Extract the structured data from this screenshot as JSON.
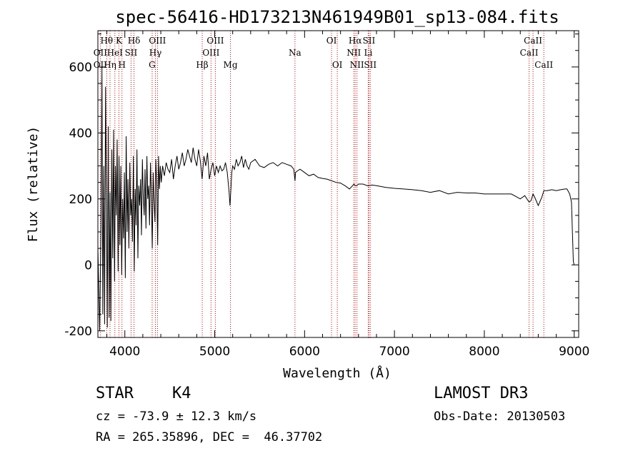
{
  "chart_data": {
    "type": "line",
    "title": "spec-56416-HD173213N461949B01_sp13-084.fits",
    "xlabel": "Wavelength (Å)",
    "ylabel": "Flux (relative)",
    "xlim": [
      3700,
      9050
    ],
    "ylim": [
      -220,
      710
    ],
    "x_ticks": [
      4000,
      5000,
      6000,
      7000,
      8000,
      9000
    ],
    "y_ticks": [
      -200,
      0,
      200,
      400,
      600
    ],
    "series": [
      {
        "name": "flux",
        "x": [
          3700,
          3720,
          3735,
          3745,
          3755,
          3765,
          3775,
          3785,
          3795,
          3805,
          3815,
          3825,
          3835,
          3845,
          3855,
          3865,
          3875,
          3885,
          3895,
          3905,
          3915,
          3925,
          3935,
          3945,
          3955,
          3965,
          3975,
          3985,
          3995,
          4005,
          4015,
          4025,
          4035,
          4045,
          4055,
          4065,
          4075,
          4085,
          4095,
          4105,
          4115,
          4125,
          4135,
          4145,
          4155,
          4165,
          4175,
          4185,
          4195,
          4205,
          4215,
          4225,
          4235,
          4245,
          4255,
          4265,
          4275,
          4285,
          4295,
          4305,
          4315,
          4325,
          4335,
          4345,
          4355,
          4365,
          4375,
          4385,
          4395,
          4405,
          4420,
          4440,
          4460,
          4480,
          4500,
          4520,
          4540,
          4560,
          4580,
          4600,
          4620,
          4640,
          4660,
          4680,
          4700,
          4720,
          4740,
          4760,
          4780,
          4800,
          4820,
          4840,
          4860,
          4880,
          4900,
          4920,
          4940,
          4960,
          4980,
          5000,
          5020,
          5040,
          5060,
          5080,
          5100,
          5120,
          5140,
          5160,
          5170,
          5180,
          5190,
          5200,
          5220,
          5240,
          5260,
          5280,
          5300,
          5320,
          5340,
          5360,
          5380,
          5400,
          5450,
          5500,
          5550,
          5600,
          5650,
          5700,
          5750,
          5800,
          5850,
          5880,
          5893,
          5900,
          5920,
          5950,
          6000,
          6050,
          6100,
          6150,
          6200,
          6250,
          6300,
          6350,
          6400,
          6450,
          6500,
          6550,
          6563,
          6580,
          6600,
          6650,
          6700,
          6750,
          6800,
          6900,
          7000,
          7100,
          7200,
          7300,
          7400,
          7500,
          7600,
          7700,
          7800,
          7900,
          8000,
          8100,
          8200,
          8300,
          8400,
          8450,
          8498,
          8520,
          8542,
          8560,
          8600,
          8640,
          8662,
          8700,
          8750,
          8800,
          8850,
          8900,
          8920,
          8950,
          8970,
          8980,
          8990,
          9000
        ],
        "y": [
          50,
          -200,
          120,
          600,
          -150,
          300,
          -180,
          540,
          200,
          -190,
          420,
          -160,
          220,
          -170,
          350,
          20,
          410,
          -50,
          300,
          150,
          380,
          -20,
          330,
          60,
          300,
          -30,
          200,
          80,
          280,
          -40,
          390,
          100,
          260,
          50,
          310,
          150,
          200,
          70,
          330,
          -20,
          230,
          120,
          350,
          20,
          240,
          180,
          260,
          90,
          320,
          210,
          150,
          290,
          110,
          330,
          200,
          240,
          120,
          310,
          220,
          50,
          280,
          200,
          130,
          320,
          240,
          60,
          330,
          230,
          300,
          250,
          300,
          270,
          310,
          290,
          280,
          320,
          260,
          300,
          330,
          290,
          310,
          340,
          300,
          320,
          350,
          330,
          310,
          355,
          320,
          300,
          350,
          315,
          260,
          330,
          300,
          340,
          260,
          290,
          310,
          270,
          300,
          280,
          300,
          285,
          290,
          310,
          280,
          220,
          180,
          230,
          280,
          300,
          290,
          320,
          300,
          310,
          330,
          295,
          320,
          300,
          290,
          310,
          320,
          300,
          295,
          305,
          310,
          300,
          310,
          305,
          300,
          290,
          255,
          280,
          285,
          290,
          280,
          270,
          275,
          265,
          262,
          260,
          255,
          250,
          248,
          240,
          230,
          245,
          240,
          240,
          245,
          245,
          240,
          242,
          240,
          235,
          232,
          230,
          228,
          225,
          220,
          225,
          215,
          220,
          218,
          218,
          215,
          215,
          215,
          215,
          200,
          210,
          190,
          195,
          215,
          205,
          180,
          205,
          225,
          225,
          228,
          225,
          228,
          230,
          230,
          215,
          190,
          100,
          10,
          0
        ]
      }
    ],
    "spectral_lines": [
      {
        "label": "Hθ",
        "wavelength": 3798,
        "row": 1,
        "dx": 0
      },
      {
        "label": "OII",
        "wavelength": 3727,
        "row": 2,
        "dx": 0
      },
      {
        "label": "OII",
        "wavelength": 3727,
        "row": 3,
        "dx": 0
      },
      {
        "label": "Hη",
        "wavelength": 3835,
        "row": 3,
        "dx": 0
      },
      {
        "label": "HeI",
        "wavelength": 3889,
        "row": 2,
        "dx": 0
      },
      {
        "label": "K",
        "wavelength": 3934,
        "row": 1,
        "dx": 0
      },
      {
        "label": "H",
        "wavelength": 3968,
        "row": 3,
        "dx": 0
      },
      {
        "label": "SII",
        "wavelength": 4069,
        "row": 2,
        "dx": 0
      },
      {
        "label": "Hδ",
        "wavelength": 4102,
        "row": 1,
        "dx": 0
      },
      {
        "label": "G",
        "wavelength": 4304,
        "row": 3,
        "dx": 0
      },
      {
        "label": "Hγ",
        "wavelength": 4340,
        "row": 2,
        "dx": 0
      },
      {
        "label": "OIII",
        "wavelength": 4363,
        "row": 1,
        "dx": 0
      },
      {
        "label": "Hβ",
        "wavelength": 4861,
        "row": 3,
        "dx": 0
      },
      {
        "label": "OIII",
        "wavelength": 4959,
        "row": 2,
        "dx": 0
      },
      {
        "label": "OIII",
        "wavelength": 5007,
        "row": 1,
        "dx": 0
      },
      {
        "label": "Mg",
        "wavelength": 5175,
        "row": 3,
        "dx": 0
      },
      {
        "label": "Na",
        "wavelength": 5893,
        "row": 2,
        "dx": 0
      },
      {
        "label": "OI",
        "wavelength": 6300,
        "row": 1,
        "dx": 0
      },
      {
        "label": "OI",
        "wavelength": 6364,
        "row": 3,
        "dx": 0
      },
      {
        "label": "Hα",
        "wavelength": 6563,
        "row": 1,
        "dx": 0
      },
      {
        "label": "NII",
        "wavelength": 6548,
        "row": 2,
        "dx": 0
      },
      {
        "label": "NII",
        "wavelength": 6583,
        "row": 3,
        "dx": 0
      },
      {
        "label": "SII",
        "wavelength": 6716,
        "row": 1,
        "dx": 0
      },
      {
        "label": "Li",
        "wavelength": 6708,
        "row": 2,
        "dx": 0
      },
      {
        "label": "SII",
        "wavelength": 6731,
        "row": 3,
        "dx": 0
      },
      {
        "label": "CaII",
        "wavelength": 8542,
        "row": 1,
        "dx": 0
      },
      {
        "label": "CaII",
        "wavelength": 8498,
        "row": 2,
        "dx": 0
      },
      {
        "label": "CaII",
        "wavelength": 8662,
        "row": 3,
        "dx": 0
      }
    ]
  },
  "info": {
    "object_class": "STAR",
    "subclass": "K4",
    "cz": "cz = -73.9 ± 12.3 km/s",
    "coords": "RA = 265.35896, DEC =  46.37702",
    "survey": "LAMOST DR3",
    "obs_date": "Obs-Date: 20130503"
  },
  "colors": {
    "spectrum": "#000000",
    "line_marker": "#cc0000",
    "axis": "#000000"
  }
}
